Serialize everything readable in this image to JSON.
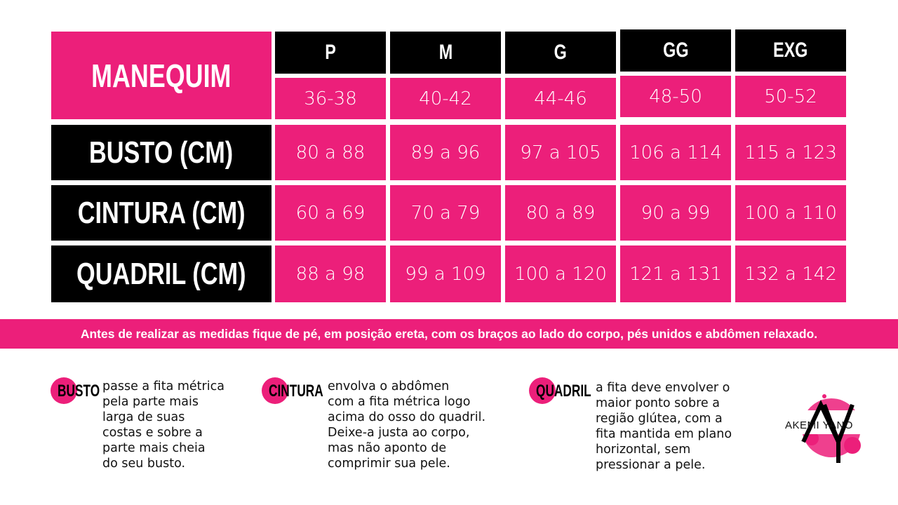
{
  "header": {
    "label": "MANEQUIM"
  },
  "sizes": [
    {
      "size": "P",
      "range": "36-38"
    },
    {
      "size": "M",
      "range": "40-42"
    },
    {
      "size": "G",
      "range": "44-46"
    },
    {
      "size": "GG",
      "range": "48-50"
    },
    {
      "size": "EXG",
      "range": "50-52"
    }
  ],
  "rows": [
    {
      "label": "BUSTO (CM)",
      "values": [
        "80 a 88",
        "89 a 96",
        "97 a 105",
        "106 a 114",
        "115 a 123"
      ]
    },
    {
      "label": "CINTURA (CM)",
      "values": [
        "60 a 69",
        "70 a 79",
        "80 a 89",
        "90 a 99",
        "100 a 110"
      ]
    },
    {
      "label": "QUADRIL (CM)",
      "values": [
        "88 a 98",
        "99 a 109",
        "100 a 120",
        "121 a 131",
        "132 a 142"
      ]
    }
  ],
  "banner": "Antes de realizar as medidas fique de pé, em posição ereta, com os braços ao lado do corpo, pés unidos e abdômen relaxado.",
  "notes": [
    {
      "label": "BUSTO",
      "text": "passe a fita métrica\npela parte mais\nlarga de suas\ncostas e sobre a\nparte mais cheia\ndo seu busto."
    },
    {
      "label": "CINTURA",
      "text": "envolva o abdômen\ncom a fita métrica logo\nacima do osso do quadril.\nDeixe-a justa ao corpo,\nmas não aponto de\ncomprimir sua pele."
    },
    {
      "label": "QUADRIL",
      "text": "a fita deve envolver o\nmaior ponto sobre a\nregião glútea, com a\nfita mantida em plano\nhorizontal, sem\npressionar a pele."
    }
  ],
  "logo": {
    "text": "AKEMI YANO"
  },
  "colors": {
    "accent": "#ec1f7a",
    "dark": "#000000"
  }
}
